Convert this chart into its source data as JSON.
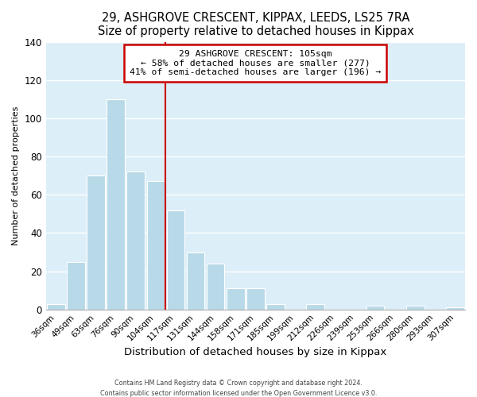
{
  "title": "29, ASHGROVE CRESCENT, KIPPAX, LEEDS, LS25 7RA",
  "subtitle": "Size of property relative to detached houses in Kippax",
  "xlabel": "Distribution of detached houses by size in Kippax",
  "ylabel": "Number of detached properties",
  "bar_labels": [
    "36sqm",
    "49sqm",
    "63sqm",
    "76sqm",
    "90sqm",
    "104sqm",
    "117sqm",
    "131sqm",
    "144sqm",
    "158sqm",
    "171sqm",
    "185sqm",
    "199sqm",
    "212sqm",
    "226sqm",
    "239sqm",
    "253sqm",
    "266sqm",
    "280sqm",
    "293sqm",
    "307sqm"
  ],
  "bar_values": [
    3,
    25,
    70,
    110,
    72,
    67,
    52,
    30,
    24,
    11,
    11,
    3,
    0,
    3,
    0,
    0,
    2,
    0,
    2,
    0,
    1
  ],
  "bar_color": "#b8d9e8",
  "bar_edge_color": "#b8d9e8",
  "vline_color": "#cc0000",
  "vline_x_index": 5.5,
  "ylim": [
    0,
    140
  ],
  "yticks": [
    0,
    20,
    40,
    60,
    80,
    100,
    120,
    140
  ],
  "annotation_title": "29 ASHGROVE CRESCENT: 105sqm",
  "annotation_line1": "← 58% of detached houses are smaller (277)",
  "annotation_line2": "41% of semi-detached houses are larger (196) →",
  "footer1": "Contains HM Land Registry data © Crown copyright and database right 2024.",
  "footer2": "Contains public sector information licensed under the Open Government Licence v3.0.",
  "fig_background": "#ffffff",
  "plot_background": "#ffffff",
  "title_fontsize": 10.5,
  "ylabel_fontsize": 8,
  "xlabel_fontsize": 9.5
}
